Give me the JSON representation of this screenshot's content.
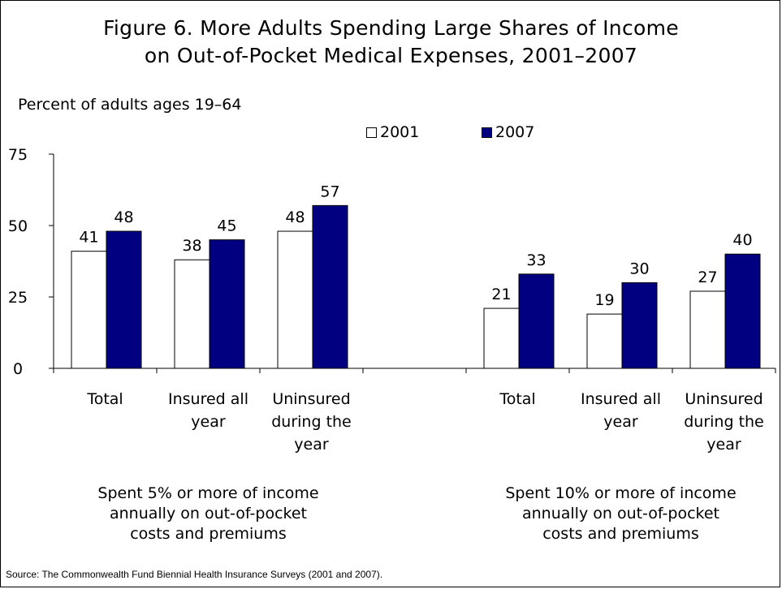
{
  "title_lines": [
    "Figure 6. More Adults Spending Large Shares of Income",
    "on Out-of-Pocket Medical Expenses, 2001–2007"
  ],
  "source": "Source: The Commonwealth Fund Biennial Health Insurance Surveys (2001 and 2007).",
  "chart_data": {
    "type": "bar",
    "title": "Figure 6. More Adults Spending Large Shares of Income on Out-of-Pocket Medical Expenses, 2001–2007",
    "ylabel": "Percent of adults ages 19–64",
    "xlabel": "",
    "ylim": [
      0,
      75
    ],
    "yticks": [
      0,
      25,
      50,
      75
    ],
    "grid": false,
    "legend_position": "top",
    "groups": [
      {
        "label": [
          "Spent 5% or more of income",
          "annually on out-of-pocket",
          "costs and premiums"
        ],
        "categories": [
          [
            "Total"
          ],
          [
            "Insured all",
            "year"
          ],
          [
            "Uninsured",
            "during the",
            "year"
          ]
        ]
      },
      {
        "label": [
          "Spent 10% or more of income",
          "annually on out-of-pocket",
          "costs and premiums"
        ],
        "categories": [
          [
            "Total"
          ],
          [
            "Insured all",
            "year"
          ],
          [
            "Uninsured",
            "during the",
            "year"
          ]
        ]
      }
    ],
    "series": [
      {
        "name": "2001",
        "color": "#ffffff",
        "values": [
          41,
          38,
          48,
          null,
          21,
          19,
          27
        ]
      },
      {
        "name": "2007",
        "color": "#000080",
        "values": [
          48,
          45,
          57,
          null,
          33,
          30,
          40
        ]
      }
    ]
  }
}
